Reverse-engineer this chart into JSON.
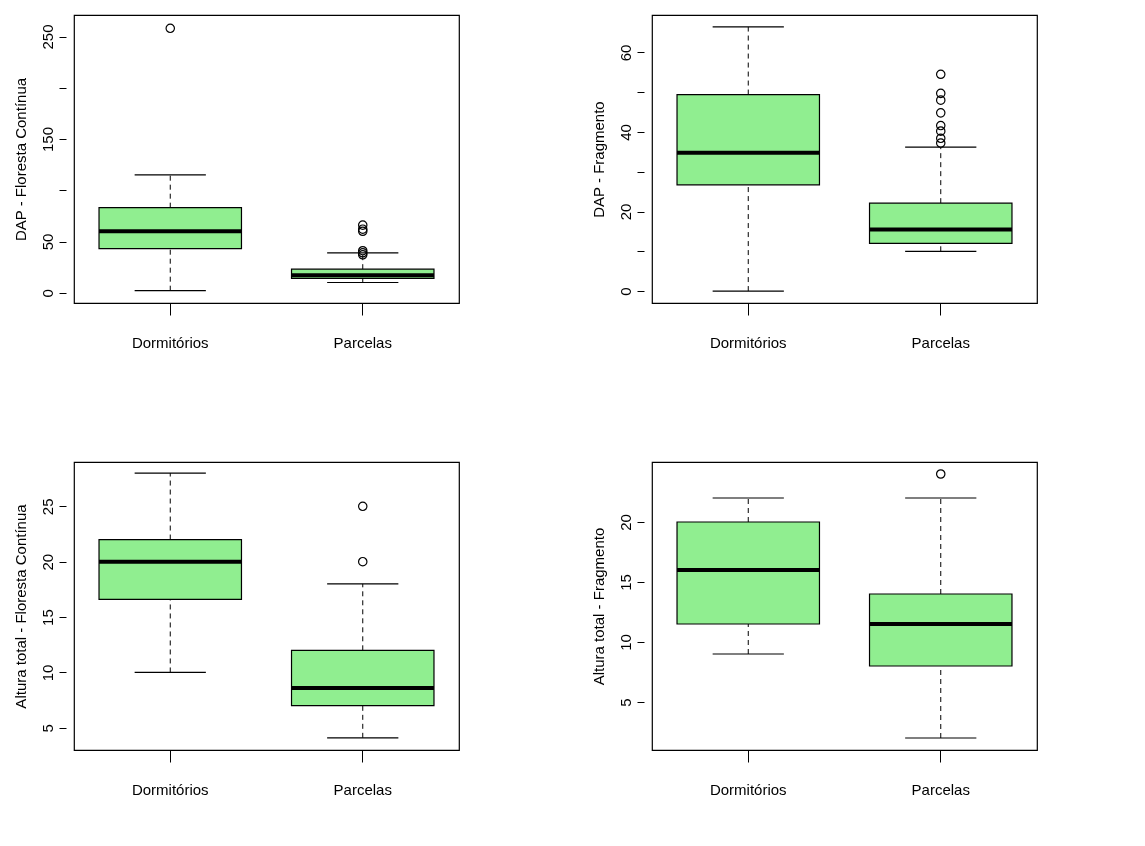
{
  "chart_data": [
    {
      "type": "box",
      "categories": [
        "Dormitórios",
        "Parcelas"
      ],
      "ylabel": "DAP - Floresta Contínua",
      "ylim": [
        -10,
        271
      ],
      "yticks": [
        0,
        50,
        {
          "value": 100,
          "label": null
        },
        150,
        {
          "value": 200,
          "label": null
        },
        250
      ],
      "series": [
        {
          "color": "#90ee90",
          "boxes": [
            {
              "low": 2,
              "q1": 43,
              "median": 60,
              "q3": 83,
              "high": 115,
              "outliers": [
                258
              ]
            },
            {
              "low": 10,
              "q1": 14,
              "median": 17,
              "q3": 23,
              "high": 39,
              "outliers": [
                37,
                39,
                41,
                60,
                62,
                66
              ]
            }
          ]
        }
      ]
    },
    {
      "type": "box",
      "categories": [
        "Dormitórios",
        "Parcelas"
      ],
      "ylabel": "DAP - Fragmento",
      "ylim": [
        -3,
        69.4
      ],
      "yticks": [
        0,
        {
          "value": 10,
          "label": null
        },
        20,
        {
          "value": 30,
          "label": null
        },
        40,
        {
          "value": 50,
          "label": null
        },
        60
      ],
      "series": [
        {
          "color": "#90ee90",
          "boxes": [
            {
              "low": 0,
              "q1": 26.7,
              "median": 34.8,
              "q3": 49.4,
              "high": 66.4
            },
            {
              "low": 10,
              "q1": 12,
              "median": 15.5,
              "q3": 22.1,
              "high": 36.2,
              "outliers": [
                37.2,
                38.4,
                40.2,
                41.6,
                44.8,
                48,
                49.7,
                54.5
              ]
            }
          ]
        }
      ]
    },
    {
      "type": "box",
      "categories": [
        "Dormitórios",
        "Parcelas"
      ],
      "ylabel": "Altura total - Floresta Contínua",
      "ylim": [
        3,
        29
      ],
      "yticks": [
        5,
        10,
        15,
        20,
        25
      ],
      "series": [
        {
          "color": "#90ee90",
          "boxes": [
            {
              "low": 10,
              "q1": 16.6,
              "median": 20,
              "q3": 22,
              "high": 28
            },
            {
              "low": 4.1,
              "q1": 7,
              "median": 8.6,
              "q3": 12,
              "high": 18,
              "outliers": [
                20,
                25
              ]
            }
          ]
        }
      ]
    },
    {
      "type": "box",
      "categories": [
        "Dormitórios",
        "Parcelas"
      ],
      "ylabel": "Altura total - Fragmento",
      "ylim": [
        1,
        25
      ],
      "yticks": [
        5,
        10,
        15,
        20
      ],
      "series": [
        {
          "color": "#90ee90",
          "boxes": [
            {
              "low": 9,
              "q1": 11.5,
              "median": 16,
              "q3": 20,
              "high": 22
            },
            {
              "low": 2,
              "q1": 8,
              "median": 11.5,
              "q3": 14,
              "high": 22,
              "outliers": [
                24
              ]
            }
          ]
        }
      ]
    }
  ]
}
